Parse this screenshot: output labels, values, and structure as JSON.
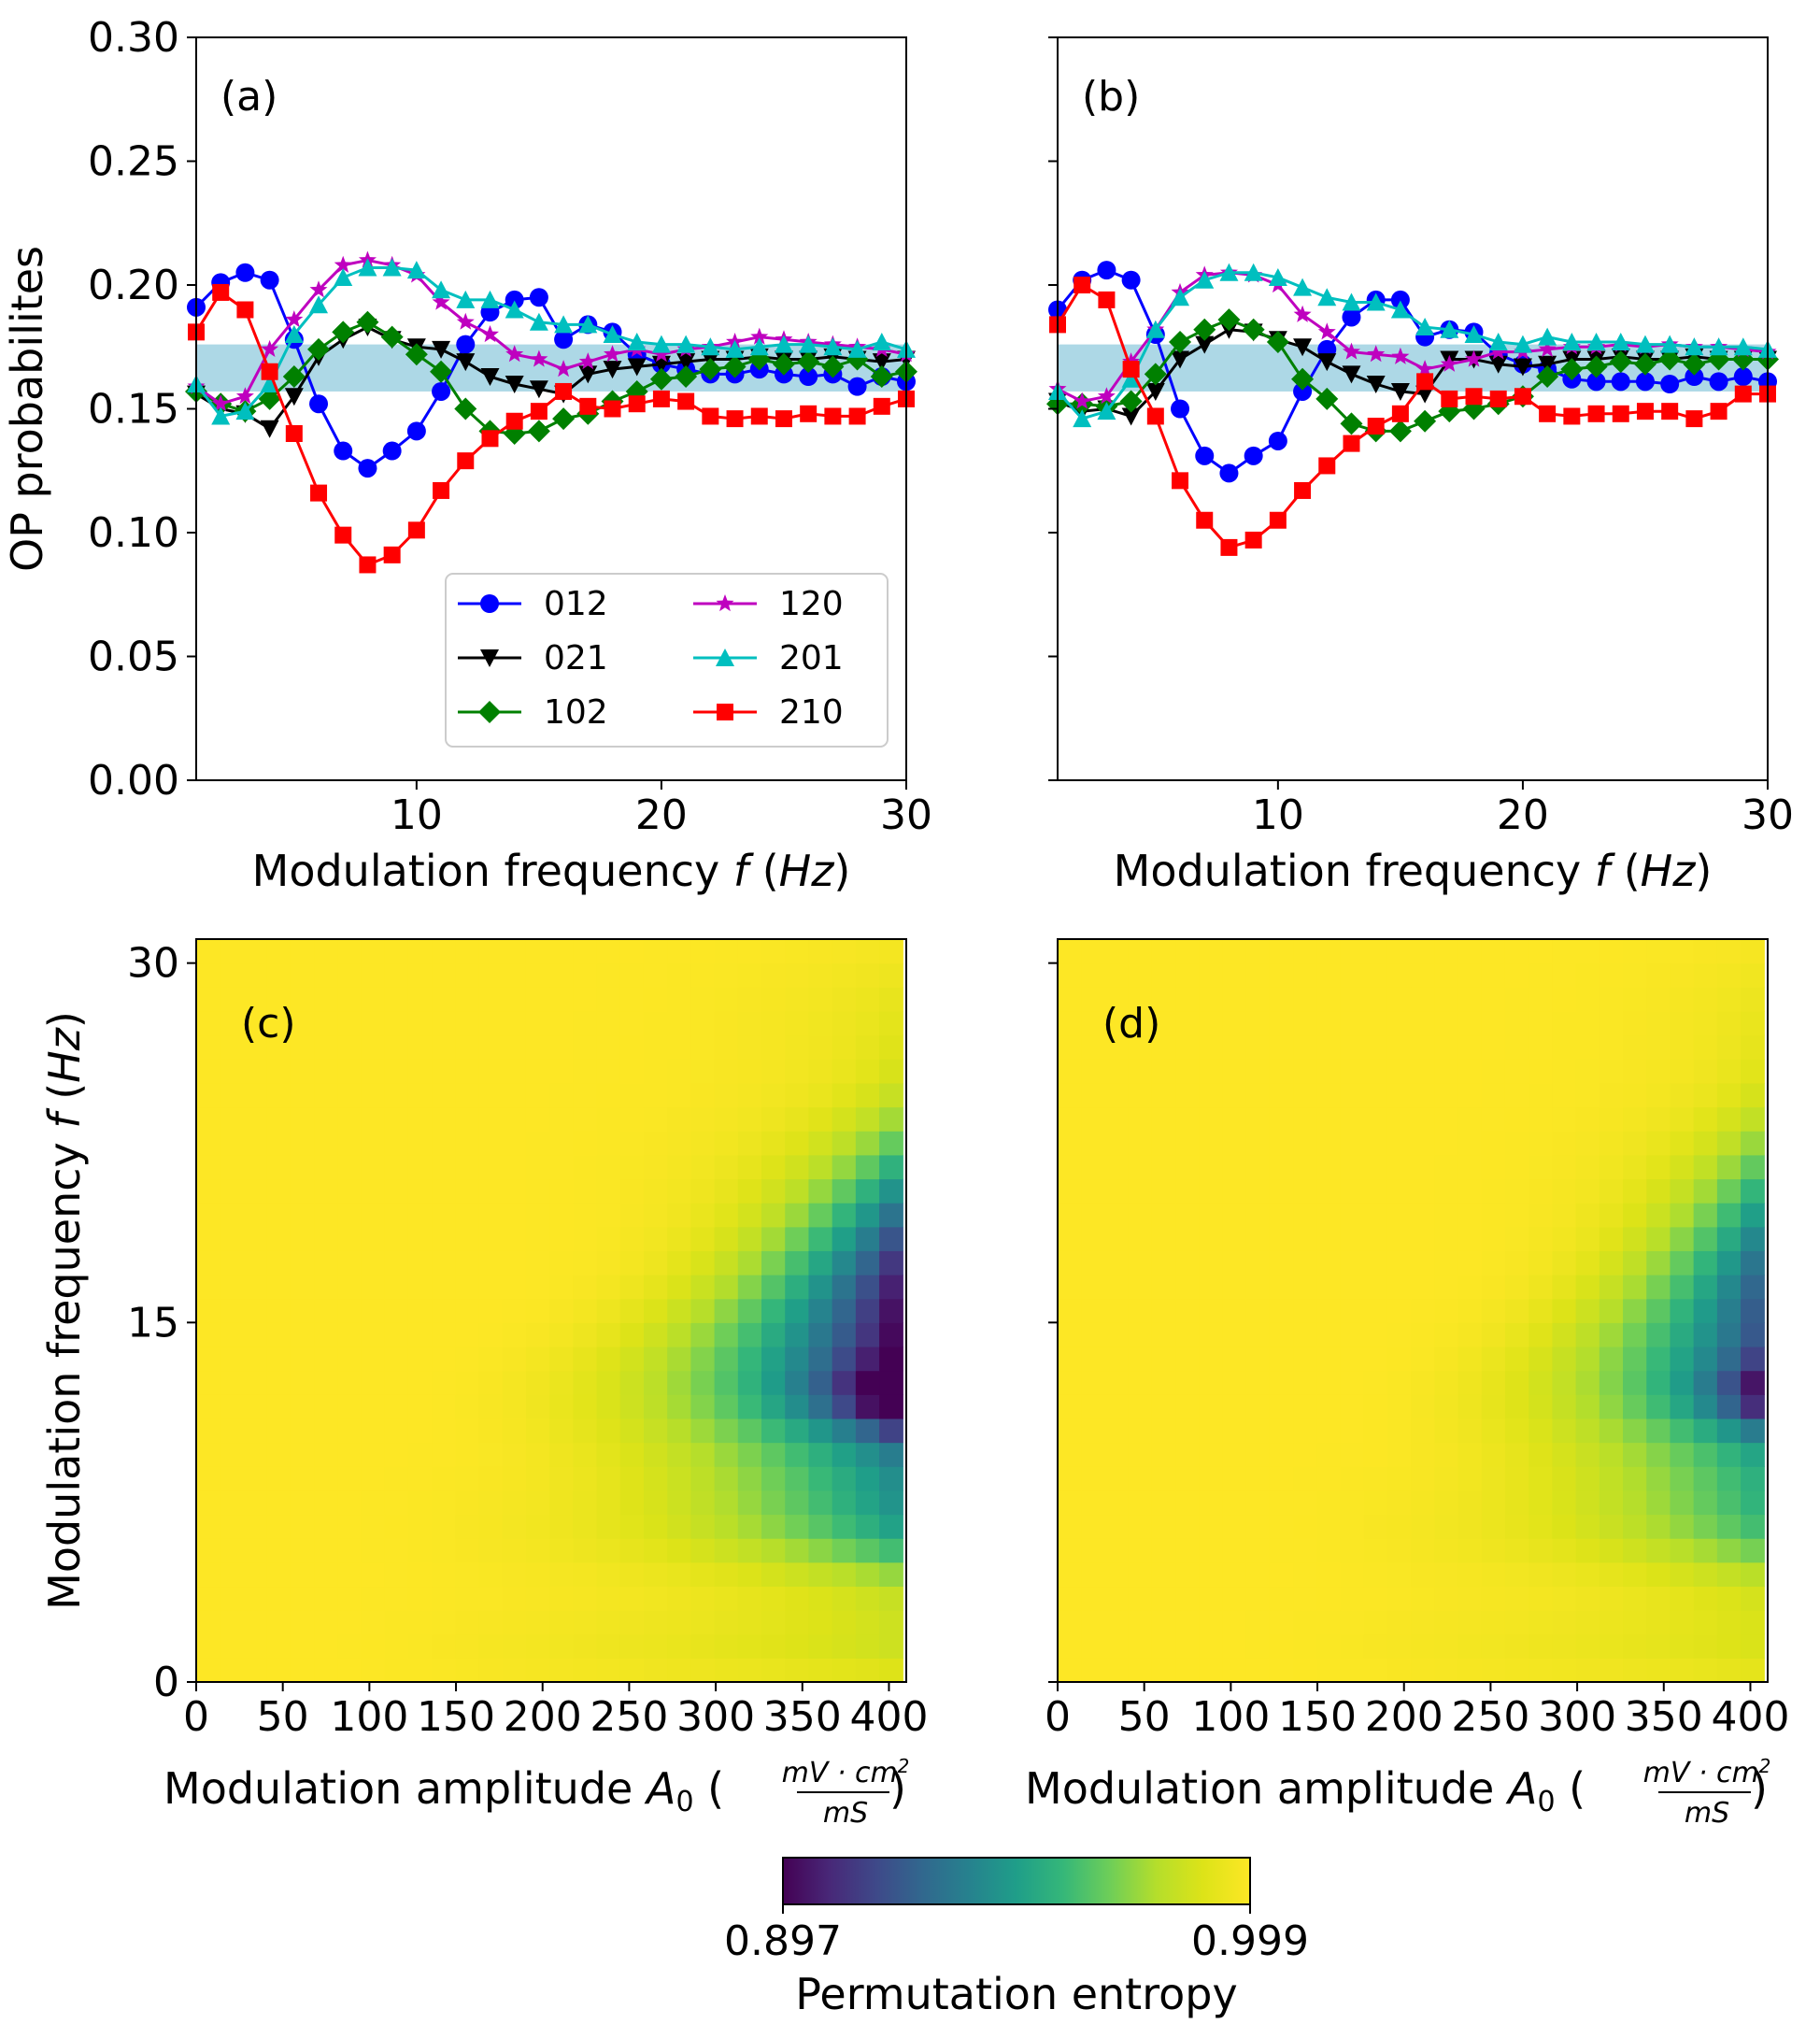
{
  "figure": {
    "panel_labels": [
      "(a)",
      "(b)",
      "(c)",
      "(d)"
    ],
    "colorbar": {
      "label": "Permutation entropy",
      "min_label": "0.897",
      "max_label": "0.999",
      "min": 0.897,
      "max": 0.999,
      "colormap": "viridis"
    }
  },
  "chart_data": [
    {
      "id": "a",
      "type": "line",
      "title": "(a)",
      "xlabel_prefix": "Modulation frequency ",
      "xlabel_var": "f",
      "xlabel_unit": "Hz",
      "ylabel": "OP probabilites",
      "xlim": [
        1,
        30
      ],
      "ylim": [
        0,
        0.3
      ],
      "xticks": [
        10,
        20,
        30
      ],
      "xtick_labels": [
        "10",
        "20",
        "30"
      ],
      "yticks": [
        0,
        0.05,
        0.1,
        0.15,
        0.2,
        0.25,
        0.3
      ],
      "ytick_labels": [
        "0.00",
        "0.05",
        "0.10",
        "0.15",
        "0.20",
        "0.25",
        "0.30"
      ],
      "shaded_band": [
        0.157,
        0.176
      ],
      "x": [
        1,
        2,
        3,
        4,
        5,
        6,
        7,
        8,
        9,
        10,
        11,
        12,
        13,
        14,
        15,
        16,
        17,
        18,
        19,
        20,
        21,
        22,
        23,
        24,
        25,
        26,
        27,
        28,
        29,
        30
      ],
      "series": [
        {
          "name": "012",
          "color": "#0000ff",
          "marker": "circle",
          "values": [
            0.191,
            0.201,
            0.205,
            0.202,
            0.178,
            0.152,
            0.133,
            0.126,
            0.133,
            0.141,
            0.157,
            0.176,
            0.189,
            0.194,
            0.195,
            0.178,
            0.184,
            0.181,
            0.172,
            0.168,
            0.166,
            0.164,
            0.164,
            0.166,
            0.164,
            0.163,
            0.164,
            0.159,
            0.163,
            0.161
          ]
        },
        {
          "name": "021",
          "color": "#000000",
          "marker": "triangle-down",
          "values": [
            0.156,
            0.15,
            0.148,
            0.142,
            0.155,
            0.171,
            0.178,
            0.183,
            0.178,
            0.175,
            0.174,
            0.169,
            0.163,
            0.16,
            0.158,
            0.156,
            0.164,
            0.166,
            0.167,
            0.168,
            0.169,
            0.17,
            0.17,
            0.171,
            0.17,
            0.17,
            0.171,
            0.17,
            0.169,
            0.17
          ]
        },
        {
          "name": "102",
          "color": "#008000",
          "marker": "diamond",
          "values": [
            0.157,
            0.152,
            0.149,
            0.154,
            0.163,
            0.174,
            0.181,
            0.185,
            0.179,
            0.172,
            0.165,
            0.15,
            0.141,
            0.14,
            0.141,
            0.146,
            0.148,
            0.153,
            0.157,
            0.162,
            0.163,
            0.166,
            0.167,
            0.17,
            0.168,
            0.169,
            0.167,
            0.17,
            0.163,
            0.165
          ]
        },
        {
          "name": "120",
          "color": "#bf00bf",
          "marker": "star",
          "values": [
            0.159,
            0.152,
            0.155,
            0.174,
            0.186,
            0.198,
            0.208,
            0.21,
            0.208,
            0.204,
            0.193,
            0.185,
            0.18,
            0.172,
            0.17,
            0.166,
            0.169,
            0.172,
            0.174,
            0.172,
            0.174,
            0.175,
            0.177,
            0.179,
            0.178,
            0.177,
            0.176,
            0.175,
            0.174,
            0.172
          ]
        },
        {
          "name": "201",
          "color": "#00bfbf",
          "marker": "triangle-up",
          "values": [
            0.16,
            0.147,
            0.149,
            0.16,
            0.18,
            0.192,
            0.203,
            0.207,
            0.207,
            0.206,
            0.198,
            0.194,
            0.194,
            0.19,
            0.185,
            0.184,
            0.184,
            0.18,
            0.177,
            0.176,
            0.176,
            0.175,
            0.174,
            0.175,
            0.176,
            0.176,
            0.175,
            0.174,
            0.177,
            0.174
          ]
        },
        {
          "name": "210",
          "color": "#ff0000",
          "marker": "square",
          "values": [
            0.181,
            0.197,
            0.19,
            0.165,
            0.14,
            0.116,
            0.099,
            0.087,
            0.091,
            0.101,
            0.117,
            0.129,
            0.138,
            0.145,
            0.149,
            0.157,
            0.151,
            0.15,
            0.152,
            0.154,
            0.153,
            0.147,
            0.146,
            0.147,
            0.146,
            0.148,
            0.147,
            0.147,
            0.151,
            0.154
          ]
        }
      ],
      "legend": {
        "location": "lower-right",
        "columns": 2
      }
    },
    {
      "id": "b",
      "type": "line",
      "title": "(b)",
      "xlabel_prefix": "Modulation frequency ",
      "xlabel_var": "f",
      "xlabel_unit": "Hz",
      "xlim": [
        1,
        30
      ],
      "ylim": [
        0,
        0.3
      ],
      "xticks": [
        10,
        20,
        30
      ],
      "xtick_labels": [
        "10",
        "20",
        "30"
      ],
      "shaded_band": [
        0.157,
        0.176
      ],
      "x": [
        1,
        2,
        3,
        4,
        5,
        6,
        7,
        8,
        9,
        10,
        11,
        12,
        13,
        14,
        15,
        16,
        17,
        18,
        19,
        20,
        21,
        22,
        23,
        24,
        25,
        26,
        27,
        28,
        29,
        30
      ],
      "series": [
        {
          "name": "012",
          "color": "#0000ff",
          "marker": "circle",
          "values": [
            0.19,
            0.202,
            0.206,
            0.202,
            0.18,
            0.15,
            0.131,
            0.124,
            0.131,
            0.137,
            0.157,
            0.174,
            0.187,
            0.194,
            0.194,
            0.179,
            0.182,
            0.181,
            0.172,
            0.168,
            0.166,
            0.162,
            0.161,
            0.161,
            0.161,
            0.16,
            0.163,
            0.161,
            0.163,
            0.161
          ]
        },
        {
          "name": "021",
          "color": "#000000",
          "marker": "triangle-down",
          "values": [
            0.153,
            0.149,
            0.15,
            0.147,
            0.157,
            0.17,
            0.176,
            0.182,
            0.181,
            0.178,
            0.175,
            0.169,
            0.164,
            0.16,
            0.157,
            0.156,
            0.17,
            0.17,
            0.168,
            0.167,
            0.168,
            0.17,
            0.17,
            0.171,
            0.17,
            0.17,
            0.171,
            0.17,
            0.17,
            0.17
          ]
        },
        {
          "name": "102",
          "color": "#008000",
          "marker": "diamond",
          "values": [
            0.152,
            0.152,
            0.151,
            0.153,
            0.164,
            0.177,
            0.182,
            0.186,
            0.182,
            0.177,
            0.162,
            0.154,
            0.144,
            0.141,
            0.141,
            0.145,
            0.149,
            0.15,
            0.152,
            0.155,
            0.163,
            0.166,
            0.167,
            0.169,
            0.168,
            0.17,
            0.168,
            0.17,
            0.17,
            0.17
          ]
        },
        {
          "name": "120",
          "color": "#bf00bf",
          "marker": "star",
          "values": [
            0.158,
            0.153,
            0.155,
            0.169,
            0.182,
            0.197,
            0.204,
            0.205,
            0.204,
            0.2,
            0.188,
            0.181,
            0.173,
            0.172,
            0.171,
            0.166,
            0.168,
            0.17,
            0.173,
            0.173,
            0.174,
            0.175,
            0.175,
            0.176,
            0.175,
            0.176,
            0.175,
            0.175,
            0.174,
            0.173
          ]
        },
        {
          "name": "201",
          "color": "#00bfbf",
          "marker": "triangle-up",
          "values": [
            0.157,
            0.146,
            0.149,
            0.162,
            0.182,
            0.195,
            0.202,
            0.205,
            0.205,
            0.203,
            0.199,
            0.195,
            0.193,
            0.193,
            0.19,
            0.183,
            0.182,
            0.18,
            0.177,
            0.176,
            0.179,
            0.177,
            0.177,
            0.177,
            0.176,
            0.176,
            0.175,
            0.175,
            0.175,
            0.174
          ]
        },
        {
          "name": "210",
          "color": "#ff0000",
          "marker": "square",
          "values": [
            0.184,
            0.2,
            0.194,
            0.166,
            0.147,
            0.121,
            0.105,
            0.094,
            0.097,
            0.105,
            0.117,
            0.127,
            0.136,
            0.143,
            0.148,
            0.161,
            0.154,
            0.155,
            0.154,
            0.155,
            0.148,
            0.147,
            0.148,
            0.148,
            0.149,
            0.149,
            0.146,
            0.149,
            0.156,
            0.156
          ]
        }
      ]
    },
    {
      "id": "c",
      "type": "heatmap",
      "title": "(c)",
      "xlabel_prefix": "Modulation amplitude ",
      "xlabel_var": "A",
      "xlabel_sub": "0",
      "xlabel_frac_num": "mV · cm",
      "xlabel_frac_sup": "2",
      "xlabel_frac_den": "mS",
      "ylabel_prefix": "Modulation frequency ",
      "ylabel_var": "f",
      "ylabel_unit": "Hz",
      "xlim": [
        0,
        410
      ],
      "ylim": [
        0,
        31
      ],
      "xticks": [
        0,
        50,
        100,
        150,
        200,
        250,
        300,
        350,
        400
      ],
      "xtick_labels": [
        "0",
        "50",
        "100",
        "150",
        "200",
        "250",
        "300",
        "350",
        "400"
      ],
      "yticks": [
        0,
        15,
        30
      ],
      "ytick_labels": [
        "0",
        "15",
        "30"
      ],
      "grid": {
        "a_step": 13.6,
        "f_step": 1.0,
        "cols": 30,
        "rows": 31
      },
      "value_range": [
        0.897,
        0.999
      ],
      "minimum": {
        "A0": 400,
        "f": 12,
        "value": 0.897
      },
      "description": "Entropy ~0.999 (yellow) for most of the map; a low-entropy band extends from about A0=250 to 410 around f=8-15 Hz with minimum near f=12 Hz at the largest amplitudes."
    },
    {
      "id": "d",
      "type": "heatmap",
      "title": "(d)",
      "xlabel_prefix": "Modulation amplitude ",
      "xlabel_var": "A",
      "xlabel_sub": "0",
      "xlabel_frac_num": "mV · cm",
      "xlabel_frac_sup": "2",
      "xlabel_frac_den": "mS",
      "xlim": [
        0,
        410
      ],
      "ylim": [
        0,
        31
      ],
      "xticks": [
        0,
        50,
        100,
        150,
        200,
        250,
        300,
        350,
        400
      ],
      "xtick_labels": [
        "0",
        "50",
        "100",
        "150",
        "200",
        "250",
        "300",
        "350",
        "400"
      ],
      "grid": {
        "a_step": 13.6,
        "f_step": 1.0,
        "cols": 30,
        "rows": 31
      },
      "value_range": [
        0.897,
        0.999
      ],
      "minimum": {
        "A0": 400,
        "f": 12,
        "value": 0.92
      },
      "description": "Same structure as (c) but weaker: the low-entropy region is less deep and starts at larger amplitudes."
    }
  ]
}
